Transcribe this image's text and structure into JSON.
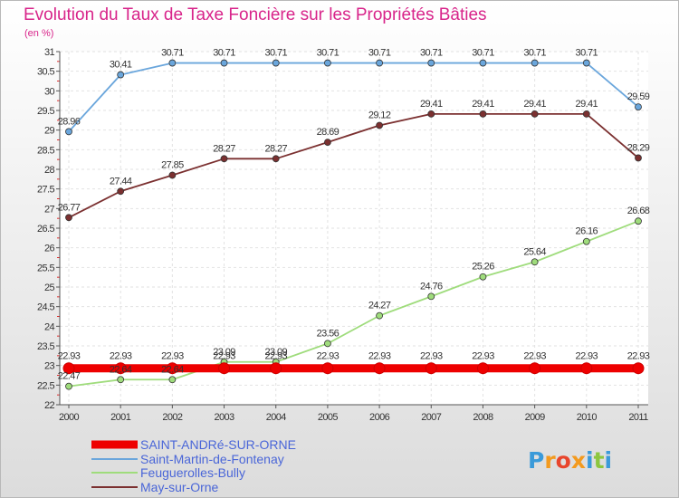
{
  "chart_data": {
    "type": "line",
    "title": "Evolution du Taux de Taxe Foncière sur les Propriétés Bâties",
    "subtitle": "(en %)",
    "x": [
      "2000",
      "2001",
      "2002",
      "2003",
      "2004",
      "2005",
      "2006",
      "2007",
      "2008",
      "2009",
      "2010",
      "2011"
    ],
    "ylim": [
      22,
      31
    ],
    "yticks": [
      "22",
      "22.5",
      "23",
      "23.5",
      "24",
      "24.5",
      "25",
      "25.5",
      "26",
      "26.5",
      "27",
      "27.5",
      "28",
      "28.5",
      "29",
      "29.5",
      "30",
      "30.5",
      "31"
    ],
    "grid": true,
    "series": [
      {
        "name": "SAINT-ANDRé-SUR-ORNE",
        "color": "#ee0000",
        "values": [
          22.93,
          22.93,
          22.93,
          22.93,
          22.93,
          22.93,
          22.93,
          22.93,
          22.93,
          22.93,
          22.93,
          22.93
        ],
        "labels": [
          "22.93",
          "22.93",
          "22.93",
          "22.93",
          "22.93",
          "22.93",
          "22.93",
          "22.93",
          "22.93",
          "22.93",
          "22.93",
          "22.93"
        ]
      },
      {
        "name": "Saint-Martin-de-Fontenay",
        "color": "#6aa6dc",
        "values": [
          28.96,
          30.41,
          30.71,
          30.71,
          30.71,
          30.71,
          30.71,
          30.71,
          30.71,
          30.71,
          30.71,
          29.59
        ],
        "labels": [
          "28.96",
          "30.41",
          "30.71",
          "30.71",
          "30.71",
          "30.71",
          "30.71",
          "30.71",
          "30.71",
          "30.71",
          "30.71",
          "29.59"
        ]
      },
      {
        "name": "Feuguerolles-Bully",
        "color": "#9fdc7c",
        "values": [
          22.47,
          22.64,
          22.64,
          23.09,
          23.09,
          23.56,
          24.27,
          24.76,
          25.26,
          25.64,
          26.16,
          26.68
        ],
        "labels": [
          "22.47",
          "22.64",
          "22.64",
          "23.09",
          "23.09",
          "23.56",
          "24.27",
          "24.76",
          "25.26",
          "25.64",
          "26.16",
          "26.68"
        ]
      },
      {
        "name": "May-sur-Orne",
        "color": "#7b3030",
        "values": [
          26.77,
          27.44,
          27.85,
          28.27,
          28.27,
          28.69,
          29.12,
          29.41,
          29.41,
          29.41,
          29.41,
          28.29
        ],
        "labels": [
          "26.77",
          "27.44",
          "27.85",
          "28.27",
          "28.27",
          "28.69",
          "29.12",
          "29.41",
          "29.41",
          "29.41",
          "29.41",
          "28.29"
        ]
      }
    ],
    "legend_position": "bottom-left"
  },
  "brand": {
    "text": "Proxiti",
    "letters": [
      "P",
      "r",
      "o",
      "x",
      "i",
      "t",
      "i"
    ],
    "colors": [
      "#3a9ad9",
      "#f39a1e",
      "#e8452c",
      "#f39a1e",
      "#3a9ad9",
      "#8cc63f",
      "#3a9ad9"
    ]
  }
}
